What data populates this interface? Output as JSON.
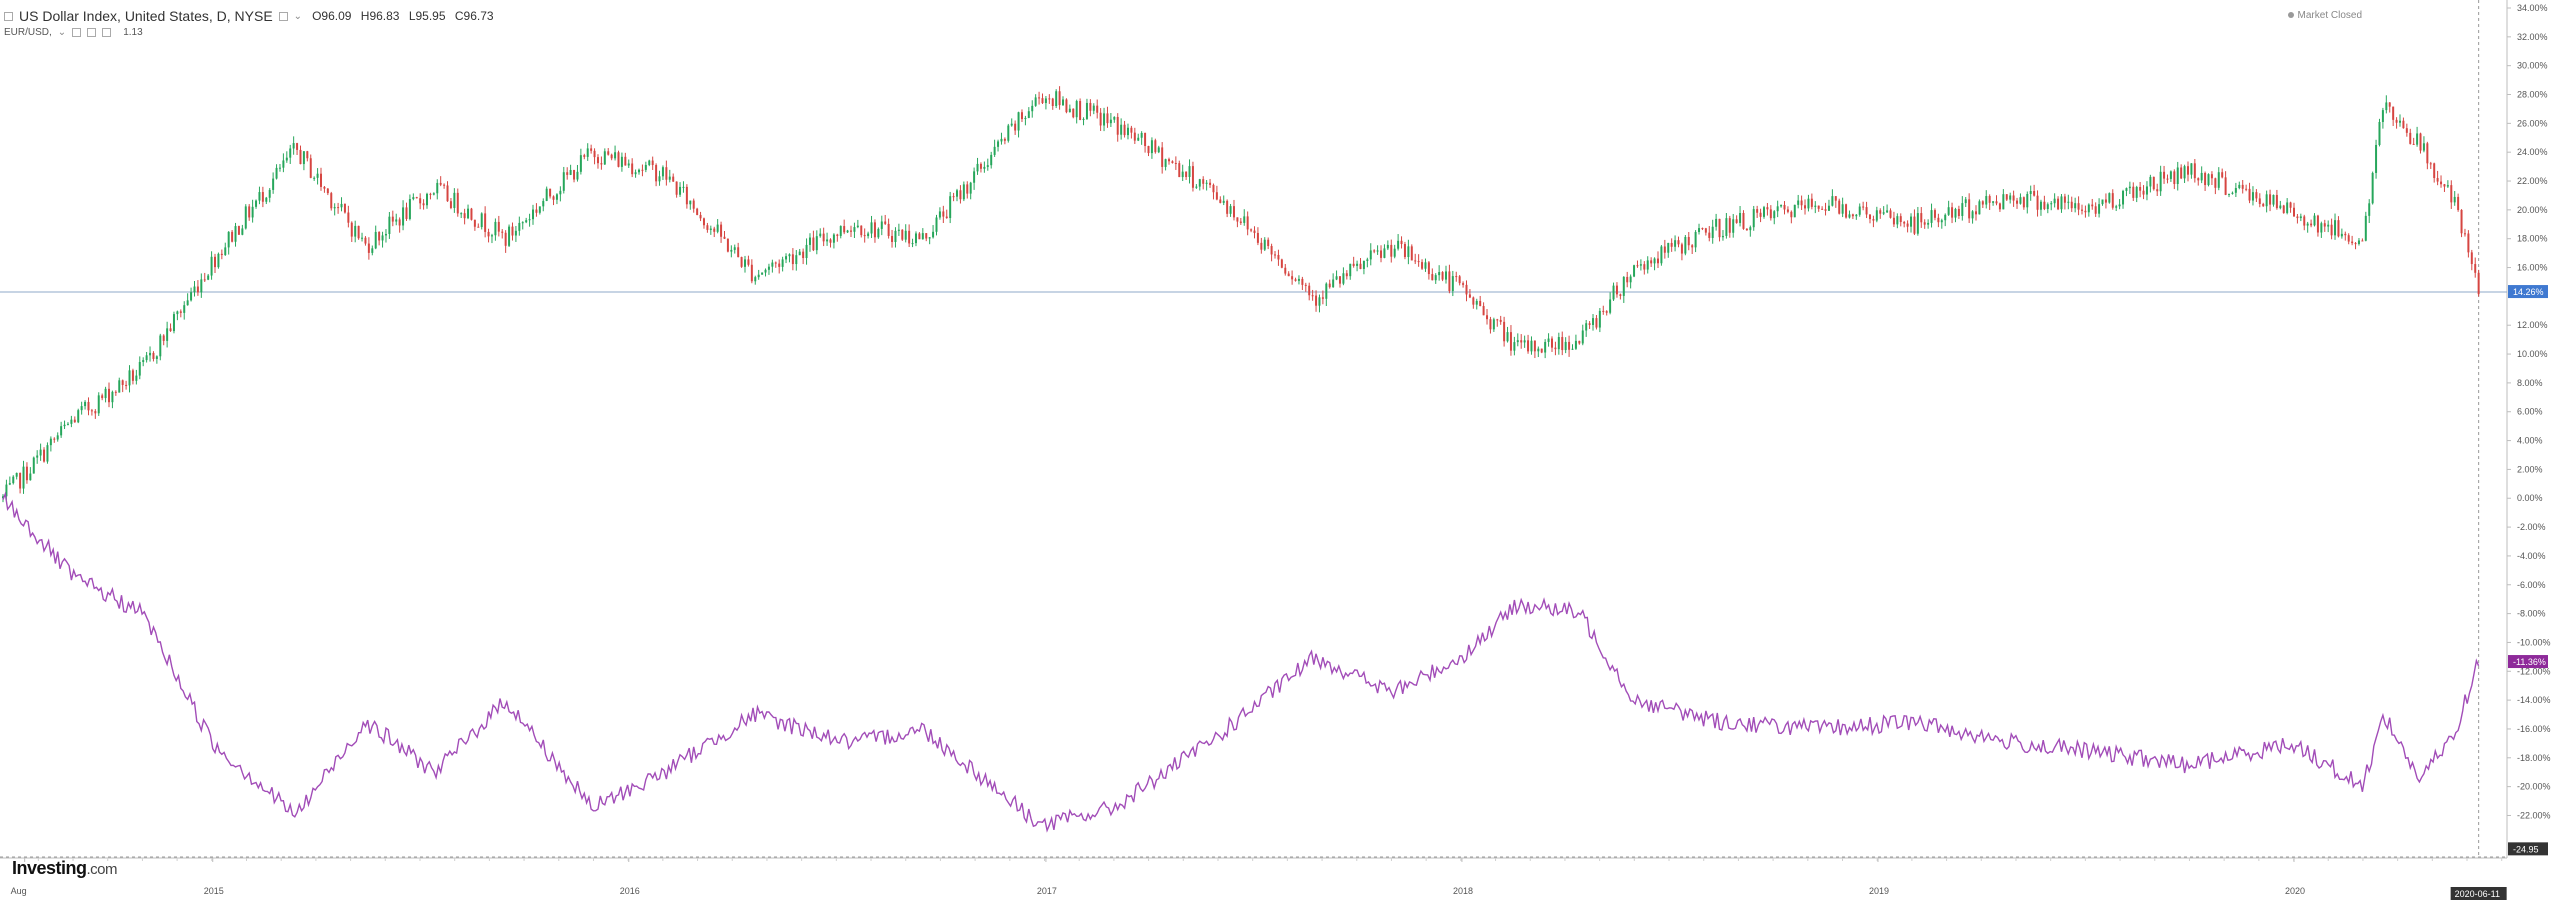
{
  "header": {
    "title": "US Dollar Index, United States, D, NYSE",
    "ohlc": {
      "open": "O96.09",
      "high": "H96.83",
      "low": "L95.95",
      "close": "C96.73"
    },
    "secondary_symbol": "EUR/USD,",
    "secondary_value": "1.13",
    "market_status": "Market Closed"
  },
  "logo": {
    "brand": "Investing",
    "suffix": ".com"
  },
  "chart_data": {
    "type": "line",
    "x_ticks": [
      "Aug",
      "2015",
      "2016",
      "2017",
      "2018",
      "2019",
      "2020"
    ],
    "x_tick_dates": [
      "2014-07-20",
      "2015-01-01",
      "2016-01-01",
      "2017-01-01",
      "2018-01-01",
      "2019-01-01",
      "2020-01-01"
    ],
    "x_range": [
      "2014-07-01",
      "2020-07-05"
    ],
    "crosshair_date": "2020-06-11",
    "y_unit": "%",
    "y_range": [
      -24.95,
      34.0
    ],
    "y_ticks": [
      "34.00%",
      "32.00%",
      "30.00%",
      "28.00%",
      "26.00%",
      "24.00%",
      "22.00%",
      "20.00%",
      "18.00%",
      "16.00%",
      "12.00%",
      "10.00%",
      "8.00%",
      "6.00%",
      "4.00%",
      "2.00%",
      "0.00%",
      "-2.00%",
      "-4.00%",
      "-6.00%",
      "-8.00%",
      "-10.00%",
      "-12.00%",
      "-14.00%",
      "-16.00%",
      "-18.00%",
      "-20.00%",
      "-22.00%"
    ],
    "last_value_labels": {
      "usd_index": "14.26%",
      "eurusd": "-11.36%",
      "bottom": "-24.95"
    },
    "grid": false,
    "colors": {
      "up": "#26a65b",
      "down": "#d64541",
      "eurusd": "#a24db8",
      "last_usd_bg": "#3f79d1",
      "last_eur_bg": "#8e2a9a"
    },
    "series": [
      {
        "style": "candlestick",
        "points": [
          [
            "2014-07-01",
            0.0
          ],
          [
            "2014-09-01",
            5.5
          ],
          [
            "2014-11-01",
            9.0
          ],
          [
            "2015-01-01",
            16.5
          ],
          [
            "2015-03-15",
            24.2
          ],
          [
            "2015-05-15",
            17.5
          ],
          [
            "2015-07-15",
            21.5
          ],
          [
            "2015-09-15",
            18.0
          ],
          [
            "2015-11-30",
            24.0
          ],
          [
            "2016-02-01",
            22.5
          ],
          [
            "2016-04-20",
            15.5
          ],
          [
            "2016-07-15",
            19.0
          ],
          [
            "2016-09-15",
            18.0
          ],
          [
            "2016-12-28",
            28.0
          ],
          [
            "2017-03-01",
            26.0
          ],
          [
            "2017-06-01",
            21.0
          ],
          [
            "2017-08-25",
            14.0
          ],
          [
            "2017-11-01",
            17.5
          ],
          [
            "2018-01-01",
            14.5
          ],
          [
            "2018-02-20",
            10.3
          ],
          [
            "2018-04-15",
            11.0
          ],
          [
            "2018-06-01",
            16.0
          ],
          [
            "2018-08-15",
            18.8
          ],
          [
            "2018-11-15",
            20.5
          ],
          [
            "2019-02-01",
            19.0
          ],
          [
            "2019-05-01",
            21.0
          ],
          [
            "2019-07-01",
            20.0
          ],
          [
            "2019-09-30",
            22.8
          ],
          [
            "2019-12-31",
            19.8
          ],
          [
            "2020-03-01",
            17.8
          ],
          [
            "2020-03-20",
            27.5
          ],
          [
            "2020-04-20",
            24.5
          ],
          [
            "2020-05-20",
            20.5
          ],
          [
            "2020-06-11",
            14.3
          ]
        ]
      },
      {
        "style": "line",
        "points": [
          [
            "2014-07-01",
            0.0
          ],
          [
            "2014-09-01",
            -5.5
          ],
          [
            "2014-11-01",
            -8.0
          ],
          [
            "2015-01-01",
            -17.0
          ],
          [
            "2015-03-15",
            -22.0
          ],
          [
            "2015-05-15",
            -15.5
          ],
          [
            "2015-07-15",
            -19.0
          ],
          [
            "2015-09-15",
            -14.0
          ],
          [
            "2015-11-30",
            -21.5
          ],
          [
            "2016-02-01",
            -19.0
          ],
          [
            "2016-04-20",
            -15.0
          ],
          [
            "2016-07-15",
            -17.0
          ],
          [
            "2016-09-15",
            -16.0
          ],
          [
            "2016-12-28",
            -22.7
          ],
          [
            "2017-03-01",
            -21.5
          ],
          [
            "2017-06-01",
            -16.5
          ],
          [
            "2017-08-25",
            -11.0
          ],
          [
            "2017-11-01",
            -13.5
          ],
          [
            "2018-01-01",
            -11.0
          ],
          [
            "2018-02-20",
            -7.3
          ],
          [
            "2018-04-15",
            -8.0
          ],
          [
            "2018-06-01",
            -14.0
          ],
          [
            "2018-08-15",
            -15.5
          ],
          [
            "2018-11-15",
            -16.0
          ],
          [
            "2019-02-01",
            -15.5
          ],
          [
            "2019-05-01",
            -17.0
          ],
          [
            "2019-07-01",
            -17.5
          ],
          [
            "2019-09-30",
            -18.5
          ],
          [
            "2019-12-31",
            -17.0
          ],
          [
            "2020-03-01",
            -20.0
          ],
          [
            "2020-03-20",
            -15.0
          ],
          [
            "2020-04-20",
            -19.5
          ],
          [
            "2020-05-20",
            -16.5
          ],
          [
            "2020-06-11",
            -11.36
          ]
        ]
      }
    ]
  }
}
